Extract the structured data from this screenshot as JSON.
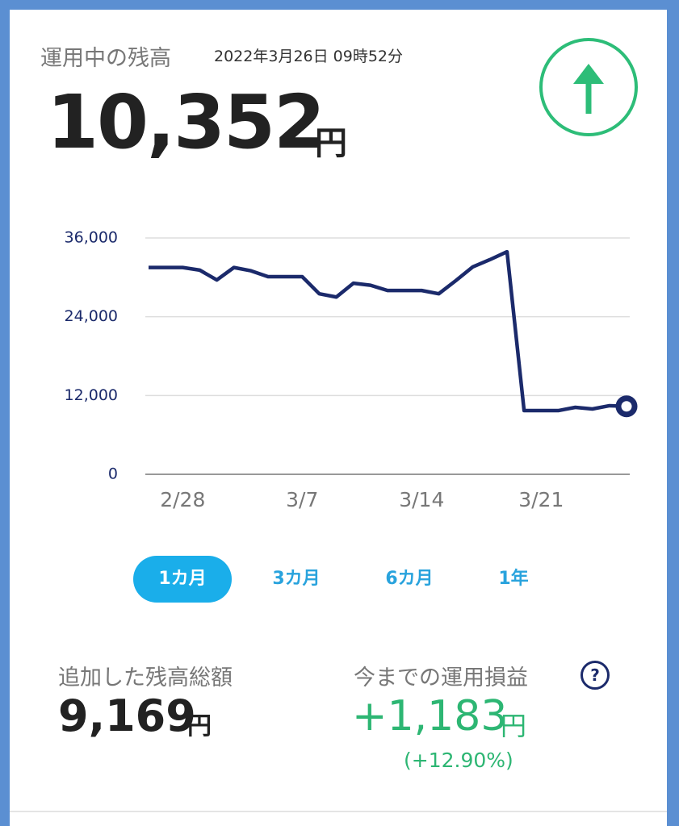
{
  "header": {
    "title": "運用中の残高",
    "timestamp": "2022年3月26日 09時52分",
    "balance": "10,352",
    "currency": "円"
  },
  "chart_data": {
    "type": "line",
    "categories": [
      null,
      null,
      "2/28",
      null,
      null,
      null,
      null,
      null,
      null,
      "3/7",
      null,
      null,
      null,
      null,
      null,
      null,
      "3/14",
      null,
      null,
      null,
      null,
      null,
      null,
      "3/21",
      null,
      null,
      null,
      null,
      null
    ],
    "values": [
      31500,
      31500,
      31500,
      31100,
      29600,
      31500,
      31000,
      30100,
      30100,
      30100,
      27500,
      27000,
      29100,
      28800,
      28000,
      28000,
      28000,
      27500,
      29500,
      31600,
      32700,
      33900,
      9700,
      9700,
      9700,
      10200,
      9950,
      10450,
      10350
    ],
    "color": "#1b2a6b",
    "ylim": [
      0,
      36000
    ],
    "yticks": [
      0,
      {
        "value": 12000,
        "label": "12,000"
      },
      {
        "value": 24000,
        "label": "24,000"
      },
      {
        "value": 36000,
        "label": "36,000"
      }
    ],
    "grid": true
  },
  "period_tabs": [
    "1カ月",
    "3カ月",
    "6カ月",
    "1年"
  ],
  "summary": {
    "added_label": "追加した残高総額",
    "added_value": "9,169",
    "added_unit": "円",
    "profit_label": "今までの運用損益",
    "help": "?",
    "profit_value": "+1,183",
    "profit_unit": "円",
    "profit_percent": "(+12.90%)"
  }
}
